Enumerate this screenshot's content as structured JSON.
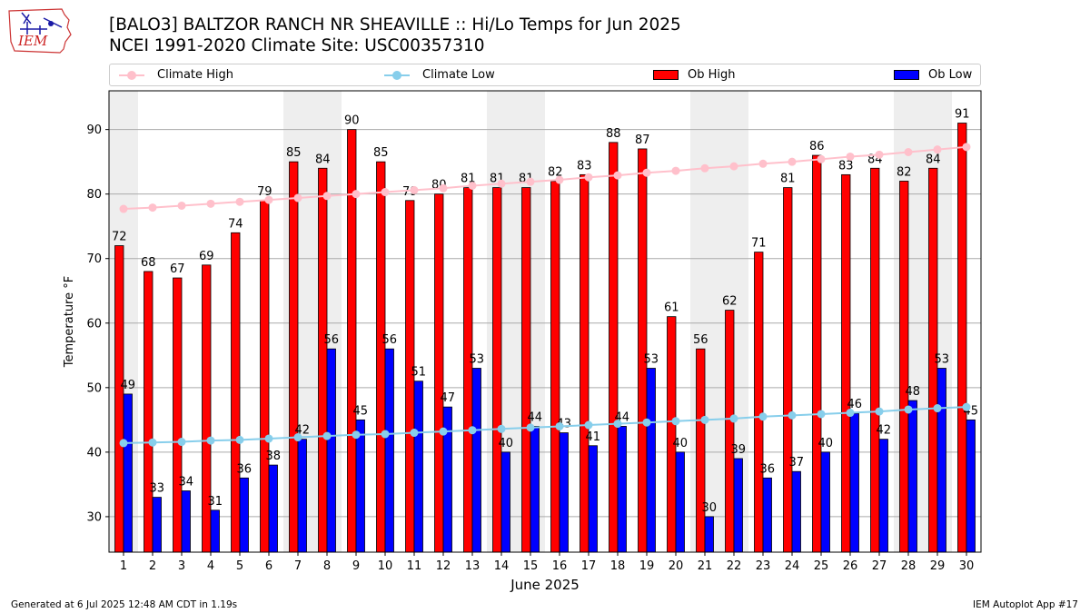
{
  "header": {
    "title": "[BALO3] BALTZOR RANCH NR SHEAVILLE :: Hi/Lo Temps for Jun 2025",
    "subtitle": "NCEI 1991-2020 Climate Site: USC00357310",
    "logo_text": "IEM"
  },
  "legend": {
    "climate_high": "Climate High",
    "climate_low": "Climate Low",
    "ob_high": "Ob High",
    "ob_low": "Ob Low"
  },
  "colors": {
    "ob_high": "#ff0000",
    "ob_low": "#0000ff",
    "climate_high": "#ffc0cb",
    "climate_low": "#87ceeb",
    "weekend_band": "#eeeeee",
    "grid": "#aaaaaa"
  },
  "chart_data": {
    "type": "bar",
    "xlabel": "June 2025",
    "ylabel": "Temperature °F",
    "ylim": [
      24.5,
      96
    ],
    "yticks": [
      30,
      40,
      50,
      60,
      70,
      80,
      90
    ],
    "grid": "horizontal",
    "legend_placement": "top",
    "shaded_days": [
      1,
      7,
      8,
      14,
      15,
      21,
      22,
      28,
      29
    ],
    "categories": [
      "1",
      "2",
      "3",
      "4",
      "5",
      "6",
      "7",
      "8",
      "9",
      "10",
      "11",
      "12",
      "13",
      "14",
      "15",
      "16",
      "17",
      "18",
      "19",
      "20",
      "21",
      "22",
      "23",
      "24",
      "25",
      "26",
      "27",
      "28",
      "29",
      "30"
    ],
    "series": [
      {
        "name": "Ob High",
        "type": "bar",
        "values": [
          72,
          68,
          67,
          69,
          74,
          79,
          85,
          84,
          90,
          85,
          79,
          80,
          81,
          81,
          81,
          82,
          83,
          88,
          87,
          61,
          56,
          62,
          71,
          81,
          86,
          83,
          84,
          82,
          84,
          91
        ],
        "labels": [
          "72",
          "68",
          "67",
          "69",
          "74",
          "79",
          "85",
          "84",
          "90",
          "85",
          "79",
          "80",
          "81",
          "81",
          "81",
          "82",
          "83",
          "88",
          "87",
          "61",
          "56",
          "62",
          "71",
          "81",
          "86",
          "83",
          "84",
          "82",
          "84",
          "91"
        ]
      },
      {
        "name": "Ob Low",
        "type": "bar",
        "values": [
          49,
          33,
          34,
          31,
          36,
          38,
          42,
          56,
          45,
          56,
          51,
          47,
          53,
          40,
          44,
          43,
          41,
          44,
          53,
          40,
          30,
          39,
          36,
          37,
          40,
          46,
          42,
          48,
          53,
          45
        ],
        "labels": [
          "49",
          "33",
          "34",
          "31",
          "36",
          "38",
          "42",
          "56",
          "45",
          "56",
          "51",
          "47",
          "53",
          "40",
          "44",
          "43",
          "41",
          "44",
          "53",
          "40",
          "30",
          "39",
          "36",
          "37",
          "40",
          "46",
          "42",
          "48",
          "53",
          "45"
        ]
      },
      {
        "name": "Climate High",
        "type": "line",
        "values": [
          77.7,
          77.9,
          78.2,
          78.5,
          78.8,
          79.1,
          79.4,
          79.7,
          80.0,
          80.3,
          80.6,
          80.9,
          81.3,
          81.6,
          81.9,
          82.2,
          82.6,
          82.9,
          83.3,
          83.6,
          84.0,
          84.3,
          84.7,
          85.0,
          85.4,
          85.8,
          86.1,
          86.5,
          86.9,
          87.3
        ]
      },
      {
        "name": "Climate Low",
        "type": "line",
        "values": [
          41.4,
          41.5,
          41.6,
          41.8,
          41.9,
          42.1,
          42.3,
          42.5,
          42.7,
          42.8,
          43.0,
          43.2,
          43.4,
          43.6,
          43.8,
          44.0,
          44.2,
          44.4,
          44.6,
          44.8,
          45.0,
          45.2,
          45.5,
          45.7,
          45.9,
          46.1,
          46.3,
          46.6,
          46.8,
          47.0
        ]
      }
    ]
  },
  "footer": {
    "generated": "Generated at 6 Jul 2025 12:48 AM CDT in 1.19s",
    "app": "IEM Autoplot App #17"
  }
}
